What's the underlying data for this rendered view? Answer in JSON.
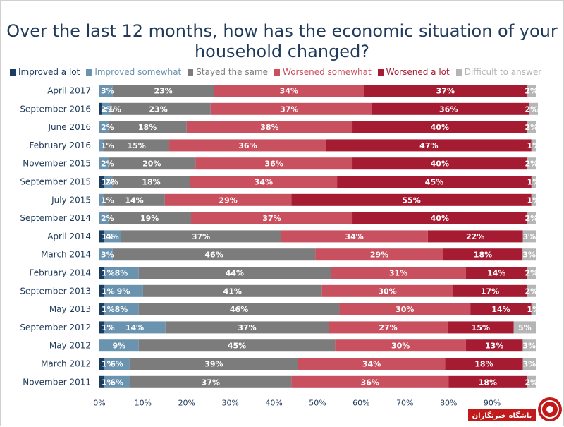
{
  "chart_data": {
    "type": "bar",
    "orientation": "horizontal",
    "stacked": true,
    "title": "Over the last 12 months, how has the economic situation of your household changed?",
    "categories": [
      "April 2017",
      "September 2016",
      "June 2016",
      "February 2016",
      "November 2015",
      "September 2015",
      "July 2015",
      "September 2014",
      "April 2014",
      "March 2014",
      "February 2014",
      "September 2013",
      "May 2013",
      "September 2012",
      "May 2012",
      "March 2012",
      "November 2011"
    ],
    "series": [
      {
        "name": "Improved a lot",
        "color": "#1a3c5e",
        "values": [
          0,
          0,
          0,
          0,
          0,
          1,
          0,
          0,
          1,
          0,
          1,
          1,
          1,
          1,
          0,
          1,
          1
        ]
      },
      {
        "name": "Improved somewhat",
        "color": "#6a93b0",
        "values": [
          3,
          2,
          2,
          1,
          2,
          2,
          1,
          2,
          4,
          3,
          8,
          9,
          8,
          14,
          9,
          6,
          6
        ]
      },
      {
        "name": "Stayed the same",
        "color": "#7c7c7c",
        "values": [
          23,
          23,
          18,
          15,
          20,
          18,
          14,
          19,
          37,
          46,
          44,
          41,
          46,
          37,
          45,
          39,
          37
        ]
      },
      {
        "name": "Worsened somewhat",
        "color": "#c9505f",
        "values": [
          34,
          37,
          38,
          36,
          36,
          34,
          29,
          37,
          34,
          29,
          31,
          30,
          30,
          27,
          30,
          34,
          36
        ]
      },
      {
        "name": "Worsened a lot",
        "color": "#a51c32",
        "values": [
          37,
          36,
          40,
          47,
          40,
          45,
          55,
          40,
          22,
          18,
          14,
          17,
          14,
          15,
          13,
          18,
          18
        ]
      },
      {
        "name": "Difficult to answer",
        "color": "#b5b5b5",
        "values": [
          2,
          2,
          2,
          1,
          2,
          1,
          1,
          2,
          3,
          3,
          2,
          2,
          1,
          5,
          3,
          3,
          2
        ]
      }
    ],
    "labels": [
      [
        "",
        "3%",
        "23%",
        "34%",
        "37%",
        "2%"
      ],
      [
        "<1%",
        "2%",
        "23%",
        "37%",
        "36%",
        "2%"
      ],
      [
        "",
        "2%",
        "18%",
        "38%",
        "40%",
        "2%"
      ],
      [
        "",
        "1%",
        "15%",
        "36%",
        "47%",
        "1%"
      ],
      [
        "",
        "2%",
        "20%",
        "36%",
        "40%",
        "2%"
      ],
      [
        "1%",
        "2%",
        "18%",
        "34%",
        "45%",
        "1%"
      ],
      [
        "",
        "1%",
        "14%",
        "29%",
        "55%",
        "1%"
      ],
      [
        "",
        "2%",
        "19%",
        "37%",
        "40%",
        "2%"
      ],
      [
        "1%",
        "4%",
        "37%",
        "34%",
        "22%",
        "3%"
      ],
      [
        "",
        "3%",
        "46%",
        "29%",
        "18%",
        "3%"
      ],
      [
        "1%",
        "8%",
        "44%",
        "31%",
        "14%",
        "2%"
      ],
      [
        "1%",
        "9%",
        "41%",
        "30%",
        "17%",
        "2%"
      ],
      [
        "1%",
        "8%",
        "46%",
        "30%",
        "14%",
        "1%"
      ],
      [
        "1%",
        "14%",
        "37%",
        "27%",
        "15%",
        "5%"
      ],
      [
        "",
        "9%",
        "45%",
        "30%",
        "13%",
        "3%"
      ],
      [
        "1%",
        "6%",
        "39%",
        "34%",
        "18%",
        "3%"
      ],
      [
        "1%",
        "6%",
        "37%",
        "36%",
        "18%",
        "2%"
      ]
    ],
    "xticks": [
      "0%",
      "10%",
      "20%",
      "30%",
      "40%",
      "50%",
      "60%",
      "70%",
      "80%",
      "90%"
    ],
    "xlim": [
      0,
      100
    ],
    "legend_position": "top",
    "grid": false
  },
  "watermark": {
    "text": "باشگاه خبرنگاران",
    "color": "#c01a1a"
  }
}
